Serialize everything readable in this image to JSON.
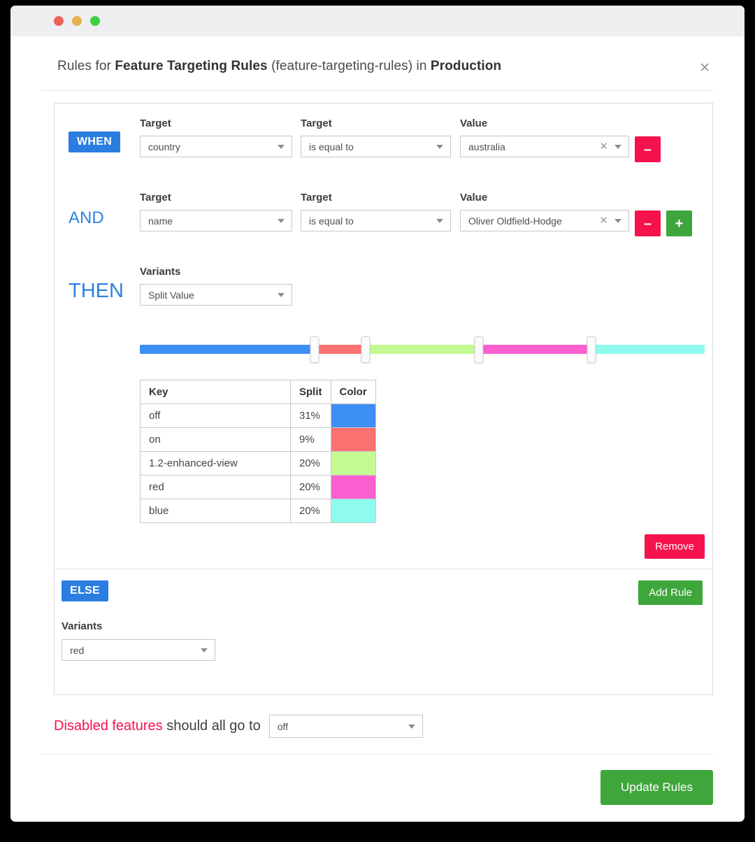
{
  "window": {
    "traffic_lights": {
      "red": "#e9635c",
      "yellow": "#e9b04f",
      "green": "#43cf43"
    }
  },
  "header": {
    "title": {
      "prefix": "Rules for ",
      "flag_name": "Feature Targeting Rules",
      "middle": " (feature-targeting-rules) in ",
      "environment": "Production"
    },
    "close_icon": "✕"
  },
  "rules_panel": {
    "conditions": [
      {
        "keyword": "WHEN",
        "target_label": "Target",
        "operator_label": "Target",
        "value_label": "Value",
        "target_value": "country",
        "operator_value": "is equal to",
        "value_value": "australia",
        "clear_icon": "✕",
        "remove_label": "–"
      },
      {
        "keyword": "AND",
        "target_label": "Target",
        "operator_label": "Target",
        "value_label": "Value",
        "target_value": "name",
        "operator_value": "is equal to",
        "value_value": "Oliver Oldfield-Hodge",
        "clear_icon": "✕",
        "remove_label": "–",
        "add_label": "+"
      }
    ],
    "then": {
      "keyword": "THEN",
      "variants_label": "Variants",
      "variants_value": "Split Value"
    },
    "split": {
      "columns": [
        "Key",
        "Split",
        "Color"
      ],
      "rows": [
        {
          "key": "off",
          "split": "31%",
          "pct": 31,
          "color": "#3d8ff5"
        },
        {
          "key": "on",
          "split": "9%",
          "pct": 9,
          "color": "#fa7171"
        },
        {
          "key": "1.2-enhanced-view",
          "split": "20%",
          "pct": 20,
          "color": "#c4fa92"
        },
        {
          "key": "red",
          "split": "20%",
          "pct": 20,
          "color": "#fa5fd0"
        },
        {
          "key": "blue",
          "split": "20%",
          "pct": 20,
          "color": "#8efbee"
        }
      ],
      "handles": [
        31,
        40,
        60,
        80
      ]
    },
    "remove_rule_label": "Remove",
    "else": {
      "keyword": "ELSE",
      "add_rule_label": "Add Rule",
      "variants_label": "Variants",
      "variants_value": "red"
    }
  },
  "footer": {
    "disabled_text": "Disabled features",
    "rest_text": "should all go to",
    "fallback_value": "off",
    "update_label": "Update Rules"
  },
  "colors": {
    "primary_blue": "#2b7de1",
    "danger": "#f5124d",
    "success": "#3fa63c"
  }
}
